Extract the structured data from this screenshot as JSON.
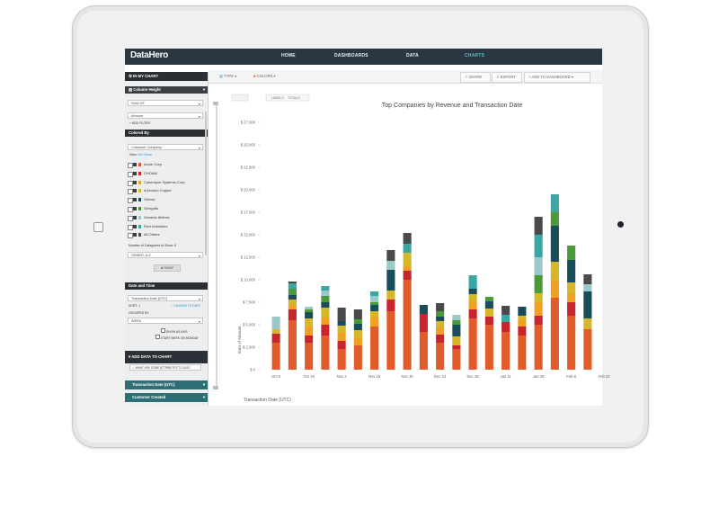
{
  "app": {
    "logo": "DataHero",
    "nav": [
      "HOME",
      "DASHBOARDS",
      "DATA",
      "CHARTS"
    ],
    "active_nav": "CHARTS",
    "accent": "#4cc3c8"
  },
  "toolbar": {
    "type_label": "TYPE ▾",
    "colors_label": "COLORS ▾",
    "share_label": "SHARE",
    "export_label": "EXPORT",
    "add_dashboard_label": "+ ADD TO DASHBOARD ▾"
  },
  "sidebar": {
    "in_my_chart": "IN MY CHART",
    "column_height": "Column Height",
    "sum_of": "SUM OF",
    "amount": "Amount",
    "add_filter": "+ ADD FILTER",
    "colored_by": "Colored By",
    "customer_company": "Customer Company",
    "view": "View:",
    "view_links": "All / None",
    "companies": [
      {
        "name": "Acme Corp",
        "color": "#e05d2b"
      },
      {
        "name": "CHOAM",
        "color": "#c8262e"
      },
      {
        "name": "Cyberdyne Systems Corp.",
        "color": "#f0a023"
      },
      {
        "name": "d'Ancorio Copper",
        "color": "#d6b62b"
      },
      {
        "name": "Globex",
        "color": "#1a4d5a"
      },
      {
        "name": "Gringotts",
        "color": "#4a9a3a"
      },
      {
        "name": "Oceanic Airlines",
        "color": "#9bc8c8"
      },
      {
        "name": "Rich Industries",
        "color": "#3aa6a6"
      },
      {
        "name": "All Others",
        "color": "#4a4a4a"
      }
    ],
    "num_categories": "Number of Categories to Show: 8",
    "order": "ORDER: A-Z",
    "swap": "⇄ SWAP",
    "date_and_time": "Date and Time",
    "transaction_date": "Transaction Date (UTC)",
    "sort": "SORT: ⇩",
    "change_to_date": "→ CHANGE TO DATE",
    "grouped_by": "GROUPED BY",
    "week": "WEEK",
    "show_as_axis": "SHOW AS AXIS",
    "start_week_monday": "START WEEK ON MONDAY",
    "add_data": "ADD DATA TO CHART",
    "search_placeholder": "WHAT ARE SOME ATTRIBUTES TO ADD?",
    "attr_1": "Transaction Date (UTC)",
    "attr_2": "Customer Created"
  },
  "chart_toggle": {
    "labels": "LABELS",
    "totals": "TOTALS"
  },
  "chart_data": {
    "type": "bar",
    "stacked": true,
    "title": "Top Companies by Revenue and Transaction Date",
    "xlabel": "Transaction Date (UTC)",
    "ylabel": "Sum of Amount",
    "ylim": [
      0,
      27500
    ],
    "yticks": [
      "$ 0",
      "$ 2,500",
      "$ 5,000",
      "$ 7,500",
      "$ 10,000",
      "$ 12,500",
      "$ 15,000",
      "$ 17,500",
      "$ 20,000",
      "$ 22,500",
      "$ 25,000",
      "$ 27,500"
    ],
    "ytick_values": [
      0,
      2500,
      5000,
      7500,
      10000,
      12500,
      15000,
      17500,
      20000,
      22500,
      25000,
      27500
    ],
    "xtick_labels": [
      "Oct 5",
      "Oct 19",
      "Nov 2",
      "Nov 16",
      "Nov 30",
      "Dec 14",
      "Dec 28",
      "Jan 11",
      "Jan 25",
      "Feb 8",
      "Feb 22"
    ],
    "series_colors": [
      "#e05d2b",
      "#c8262e",
      "#f0a023",
      "#d6b62b",
      "#1a4d5a",
      "#4a9a3a",
      "#9bc8c8",
      "#3aa6a6",
      "#4a4a4a"
    ],
    "series": [
      {
        "name": "Acme Corp",
        "values": [
          3000,
          5500,
          3000,
          3800,
          2300,
          2700,
          4800,
          6500,
          10000,
          4200,
          3000,
          2300,
          5700,
          5000,
          4200,
          3800,
          5000,
          8000,
          6000,
          4500
        ]
      },
      {
        "name": "CHOAM",
        "values": [
          1000,
          1200,
          800,
          1200,
          900,
          0,
          0,
          1300,
          1000,
          2000,
          900,
          400,
          1000,
          900,
          1100,
          1000,
          1000,
          0,
          1500,
          0
        ]
      },
      {
        "name": "Cyberdyne Systems Corp.",
        "values": [
          0,
          500,
          1000,
          800,
          900,
          800,
          1000,
          0,
          500,
          0,
          800,
          0,
          900,
          0,
          0,
          700,
          1500,
          2000,
          1000,
          0
        ]
      },
      {
        "name": "d'Ancorio Copper",
        "values": [
          500,
          600,
          900,
          1100,
          800,
          900,
          700,
          1000,
          1500,
          0,
          700,
          1000,
          800,
          900,
          0,
          500,
          1000,
          2000,
          1200,
          1200
        ]
      },
      {
        "name": "Globex",
        "values": [
          0,
          500,
          700,
          600,
          500,
          700,
          700,
          2300,
          0,
          1000,
          500,
          1300,
          600,
          800,
          0,
          1000,
          0,
          4000,
          2500,
          3000
        ]
      },
      {
        "name": "Gringotts",
        "values": [
          0,
          700,
          300,
          700,
          0,
          500,
          300,
          0,
          0,
          0,
          600,
          500,
          0,
          500,
          0,
          0,
          2000,
          1500,
          1600,
          0
        ]
      },
      {
        "name": "Oceanic Airlines",
        "values": [
          1400,
          0,
          300,
          600,
          0,
          0,
          700,
          1000,
          0,
          0,
          0,
          600,
          0,
          0,
          0,
          0,
          2000,
          0,
          0,
          800
        ]
      },
      {
        "name": "Rich Industries",
        "values": [
          0,
          600,
          0,
          500,
          0,
          0,
          500,
          0,
          1000,
          0,
          0,
          0,
          1500,
          0,
          800,
          0,
          2500,
          2000,
          0,
          0
        ]
      },
      {
        "name": "All Others",
        "values": [
          0,
          200,
          0,
          0,
          1500,
          1100,
          0,
          1200,
          1200,
          0,
          900,
          0,
          0,
          0,
          1000,
          0,
          2000,
          0,
          0,
          1100
        ]
      }
    ]
  }
}
